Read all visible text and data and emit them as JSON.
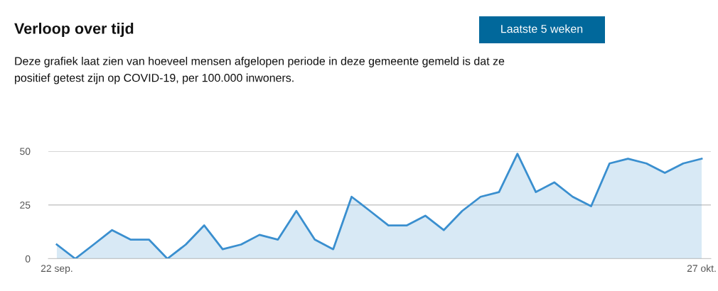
{
  "chart_data": {
    "type": "area",
    "title": "Verloop over tijd",
    "subtitle": "Deze grafiek laat zien van hoeveel mensen afgelopen periode in deze gemeente gemeld is dat ze positief getest zijn op COVID-19, per 100.000 inwoners.",
    "annotations": [
      "Laatste 5 weken"
    ],
    "categories": [
      "22 sep.",
      null,
      null,
      null,
      null,
      null,
      null,
      null,
      null,
      null,
      null,
      null,
      null,
      null,
      null,
      null,
      null,
      null,
      null,
      null,
      null,
      null,
      null,
      null,
      null,
      null,
      null,
      null,
      null,
      null,
      null,
      null,
      null,
      null,
      null,
      "27 okt."
    ],
    "series": [
      {
        "color": "#3a8fcf",
        "values": [
          6.6,
          0,
          6.6,
          13.3,
          8.9,
          8.9,
          0,
          6.6,
          15.5,
          4.4,
          6.6,
          11.1,
          8.9,
          22.2,
          8.9,
          4.4,
          28.8,
          22.2,
          15.5,
          15.5,
          20,
          13.3,
          22.2,
          28.8,
          31,
          48.8,
          31,
          35.5,
          28.8,
          24.4,
          44.3,
          46.5,
          44.3,
          39.9,
          44.3,
          46.5
        ]
      }
    ],
    "ylim": [
      0,
      50
    ],
    "yticks": [
      0,
      25,
      50
    ],
    "grid": "y"
  }
}
